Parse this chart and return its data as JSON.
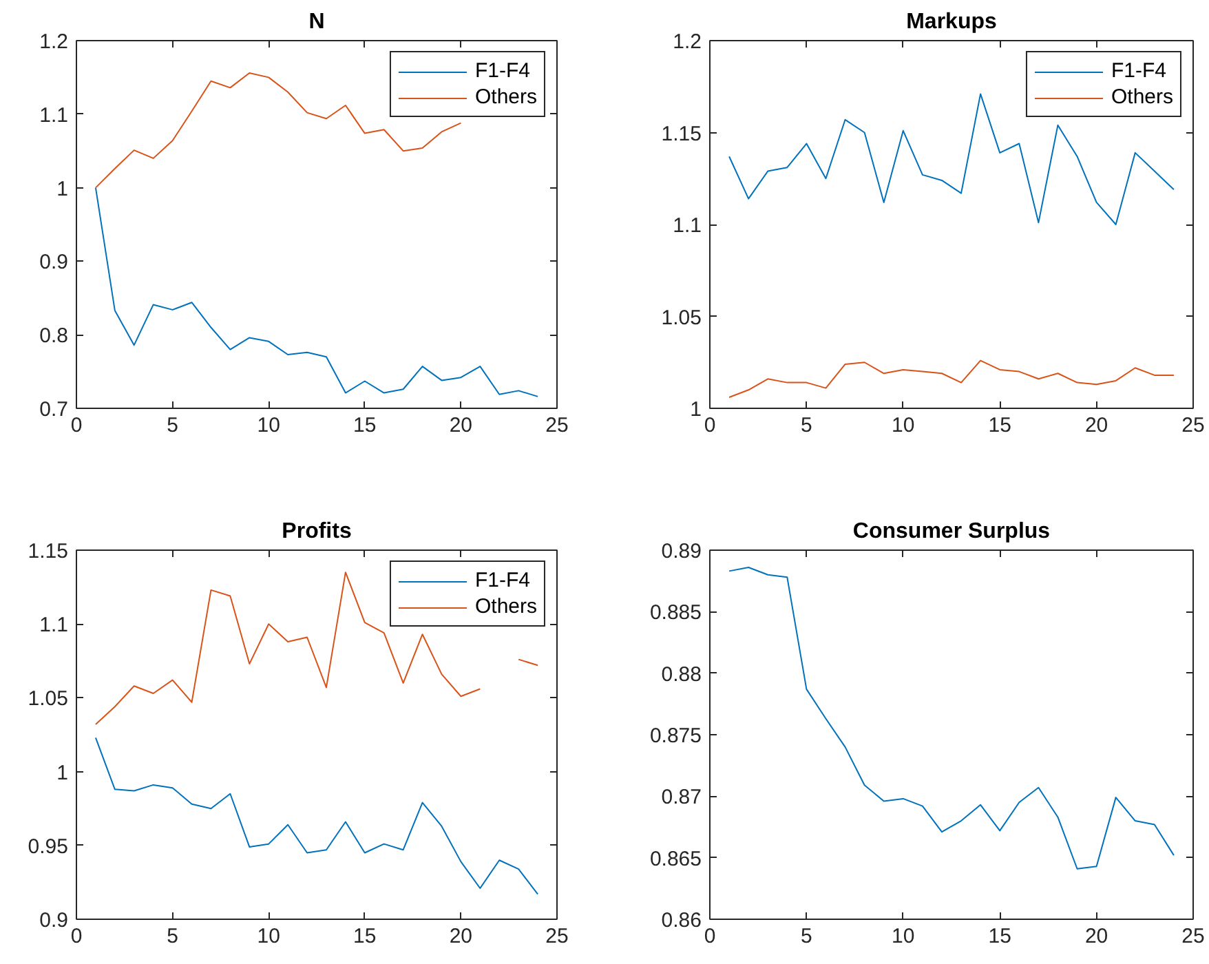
{
  "chart_data": [
    {
      "type": "line",
      "title": "N",
      "x": [
        1,
        2,
        3,
        4,
        5,
        6,
        7,
        8,
        9,
        10,
        11,
        12,
        13,
        14,
        15,
        16,
        17,
        18,
        19,
        20,
        21,
        22,
        23,
        24
      ],
      "xlim": [
        0,
        25
      ],
      "xticks": [
        0,
        5,
        10,
        15,
        20,
        25
      ],
      "ylim": [
        0.7,
        1.2
      ],
      "yticks": [
        0.7,
        0.8,
        0.9,
        1,
        1.1,
        1.2
      ],
      "legend": "top right",
      "series": [
        {
          "name": "F1-F4",
          "color": "#0072bd",
          "values": [
            1.0,
            0.833,
            0.786,
            0.841,
            0.834,
            0.844,
            0.81,
            0.78,
            0.796,
            0.791,
            0.773,
            0.776,
            0.77,
            0.721,
            0.737,
            0.721,
            0.726,
            0.757,
            0.738,
            0.742,
            0.757,
            0.719,
            0.724,
            0.716
          ]
        },
        {
          "name": "Others",
          "color": "#d95319",
          "values": [
            1.0,
            1.026,
            1.051,
            1.04,
            1.064,
            1.104,
            1.145,
            1.136,
            1.156,
            1.15,
            1.13,
            1.102,
            1.094,
            1.112,
            1.074,
            1.079,
            1.05,
            1.054,
            1.076,
            1.088,
            null,
            null,
            null,
            null
          ]
        }
      ]
    },
    {
      "type": "line",
      "title": "Markups",
      "x": [
        1,
        2,
        3,
        4,
        5,
        6,
        7,
        8,
        9,
        10,
        11,
        12,
        13,
        14,
        15,
        16,
        17,
        18,
        19,
        20,
        21,
        22,
        23,
        24
      ],
      "xlim": [
        0,
        25
      ],
      "xticks": [
        0,
        5,
        10,
        15,
        20,
        25
      ],
      "ylim": [
        1,
        1.2
      ],
      "yticks": [
        1,
        1.05,
        1.1,
        1.15,
        1.2
      ],
      "legend": "top right",
      "series": [
        {
          "name": "F1-F4",
          "color": "#0072bd",
          "values": [
            1.137,
            1.114,
            1.129,
            1.131,
            1.144,
            1.125,
            1.157,
            1.15,
            1.112,
            1.151,
            1.127,
            1.124,
            1.117,
            1.171,
            1.139,
            1.144,
            1.101,
            1.154,
            1.137,
            1.112,
            1.1,
            1.139,
            1.129,
            1.119
          ]
        },
        {
          "name": "Others",
          "color": "#d95319",
          "values": [
            1.006,
            1.01,
            1.016,
            1.014,
            1.014,
            1.011,
            1.024,
            1.025,
            1.019,
            1.021,
            1.02,
            1.019,
            1.014,
            1.026,
            1.021,
            1.02,
            1.016,
            1.019,
            1.014,
            1.013,
            1.015,
            1.022,
            1.018,
            1.018
          ]
        }
      ]
    },
    {
      "type": "line",
      "title": "Profits",
      "x": [
        1,
        2,
        3,
        4,
        5,
        6,
        7,
        8,
        9,
        10,
        11,
        12,
        13,
        14,
        15,
        16,
        17,
        18,
        19,
        20,
        21,
        22,
        23,
        24
      ],
      "xlim": [
        0,
        25
      ],
      "xticks": [
        0,
        5,
        10,
        15,
        20,
        25
      ],
      "ylim": [
        0.9,
        1.15
      ],
      "yticks": [
        0.9,
        0.95,
        1,
        1.05,
        1.1,
        1.15
      ],
      "legend": "top right",
      "series": [
        {
          "name": "F1-F4",
          "color": "#0072bd",
          "values": [
            1.023,
            0.988,
            0.987,
            0.991,
            0.989,
            0.978,
            0.975,
            0.985,
            0.949,
            0.951,
            0.964,
            0.945,
            0.947,
            0.966,
            0.945,
            0.951,
            0.947,
            0.979,
            0.963,
            0.939,
            0.921,
            0.94,
            0.934,
            0.917
          ]
        },
        {
          "name": "Others",
          "color": "#d95319",
          "values": [
            1.032,
            1.044,
            1.058,
            1.053,
            1.062,
            1.047,
            1.123,
            1.119,
            1.073,
            1.1,
            1.088,
            1.091,
            1.057,
            1.135,
            1.101,
            1.094,
            1.06,
            1.093,
            1.066,
            1.051,
            1.056,
            null,
            1.076,
            1.072
          ]
        }
      ]
    },
    {
      "type": "line",
      "title": "Consumer Surplus",
      "x": [
        1,
        2,
        3,
        4,
        5,
        6,
        7,
        8,
        9,
        10,
        11,
        12,
        13,
        14,
        15,
        16,
        17,
        18,
        19,
        20,
        21,
        22,
        23,
        24
      ],
      "xlim": [
        0,
        25
      ],
      "xticks": [
        0,
        5,
        10,
        15,
        20,
        25
      ],
      "ylim": [
        0.86,
        0.89
      ],
      "yticks": [
        0.86,
        0.865,
        0.87,
        0.875,
        0.88,
        0.885,
        0.89
      ],
      "series": [
        {
          "color": "#0072bd",
          "values": [
            0.8883,
            0.8886,
            0.888,
            0.8878,
            0.8787,
            0.8763,
            0.874,
            0.8709,
            0.8696,
            0.8698,
            0.8692,
            0.8671,
            0.868,
            0.8693,
            0.8672,
            0.8695,
            0.8707,
            0.8683,
            0.8641,
            0.8643,
            0.8699,
            0.868,
            0.8677,
            0.8652
          ]
        }
      ]
    }
  ]
}
